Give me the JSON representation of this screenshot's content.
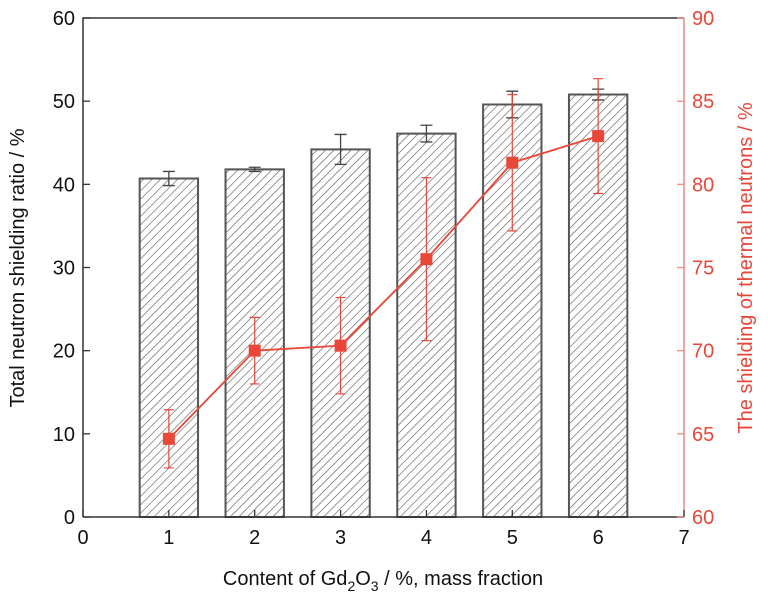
{
  "chart_data": {
    "type": "bar+line",
    "categories": [
      1,
      2,
      3,
      4,
      5,
      6
    ],
    "xlim": [
      0,
      7
    ],
    "x_ticks": [
      "0",
      "1",
      "2",
      "3",
      "4",
      "5",
      "6",
      "7"
    ],
    "xlabel_parts": [
      "Content of Gd",
      "2",
      "O",
      "3",
      " / %, mass fraction"
    ],
    "xlabel": "Content of Gd2O3 / %, mass fraction",
    "left_axis": {
      "label": "Total neutron shielding ratio / %",
      "ylim": [
        0,
        60
      ],
      "ticks": [
        "0",
        "10",
        "20",
        "30",
        "40",
        "50",
        "60"
      ]
    },
    "right_axis": {
      "label": "The shielding of thermal neutrons / %",
      "ylim": [
        60,
        90
      ],
      "ticks": [
        "60",
        "65",
        "70",
        "75",
        "80",
        "85",
        "90"
      ]
    },
    "series": [
      {
        "name": "Total neutron shielding ratio",
        "type": "bar",
        "axis": "left",
        "pattern": "hatched",
        "values": [
          40.7,
          41.8,
          44.2,
          46.1,
          49.6,
          50.8
        ],
        "errors": [
          0.85,
          0.25,
          1.8,
          1.0,
          1.6,
          0.65
        ],
        "color": "#555555"
      },
      {
        "name": "The shielding of thermal neutrons",
        "type": "line",
        "marker": "square",
        "axis": "right",
        "values": [
          64.7,
          70.0,
          70.3,
          75.5,
          81.3,
          82.9
        ],
        "errors": [
          1.75,
          2.0,
          2.9,
          4.9,
          4.1,
          3.45
        ],
        "color": "#e8473a"
      }
    ],
    "grid": false,
    "legend": "none"
  },
  "colors": {
    "red": "#e8473a",
    "red_axis": "#f08a80",
    "dark": "#333333"
  }
}
